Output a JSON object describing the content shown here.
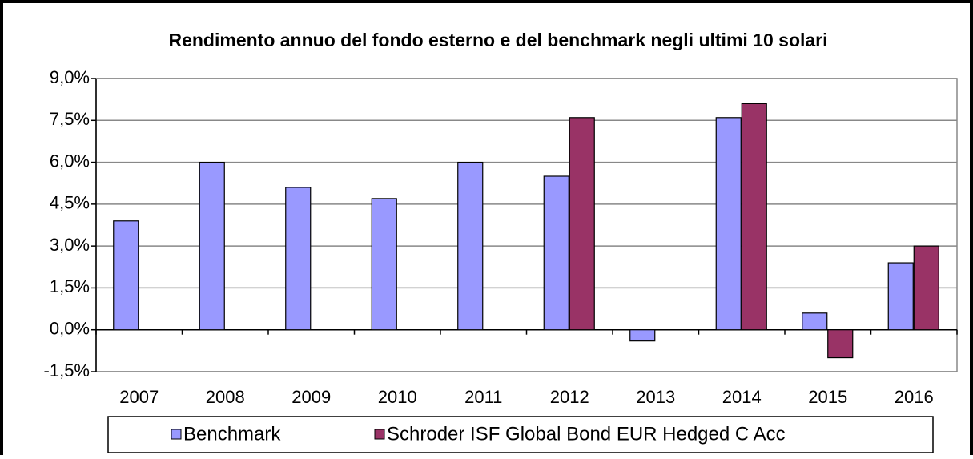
{
  "chart_data": {
    "type": "bar",
    "title": "Rendimento annuo del fondo esterno e del benchmark negli ultimi  10 solari",
    "categories": [
      "2007",
      "2008",
      "2009",
      "2010",
      "2011",
      "2012",
      "2013",
      "2014",
      "2015",
      "2016"
    ],
    "series": [
      {
        "name": "Benchmark",
        "color": "#9999ff",
        "values": [
          3.9,
          6.0,
          5.1,
          4.7,
          6.0,
          5.5,
          -0.4,
          7.6,
          0.6,
          2.4
        ]
      },
      {
        "name": "Schroder ISF Global Bond EUR Hedged C Acc",
        "color": "#993366",
        "values": [
          null,
          null,
          null,
          null,
          null,
          7.6,
          null,
          8.1,
          -1.0,
          3.0
        ]
      }
    ],
    "ylim": [
      -1.5,
      9.0
    ],
    "yticks": [
      {
        "value": -1.5,
        "label": "-1,5%"
      },
      {
        "value": 0,
        "label": "0,0%"
      },
      {
        "value": 1.5,
        "label": "1,5%"
      },
      {
        "value": 3.0,
        "label": "3,0%"
      },
      {
        "value": 4.5,
        "label": "4,5%"
      },
      {
        "value": 6.0,
        "label": "6,0%"
      },
      {
        "value": 7.5,
        "label": "7,5%"
      },
      {
        "value": 9.0,
        "label": "9,0%"
      }
    ],
    "grid": true,
    "legend": "bottom"
  }
}
